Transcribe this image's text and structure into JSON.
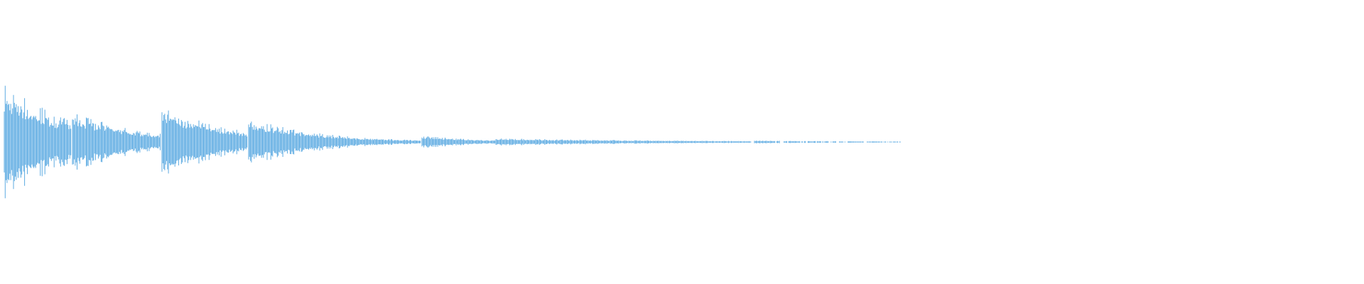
{
  "waveform": {
    "color": "#5dabe2",
    "background": "#ffffff"
  }
}
